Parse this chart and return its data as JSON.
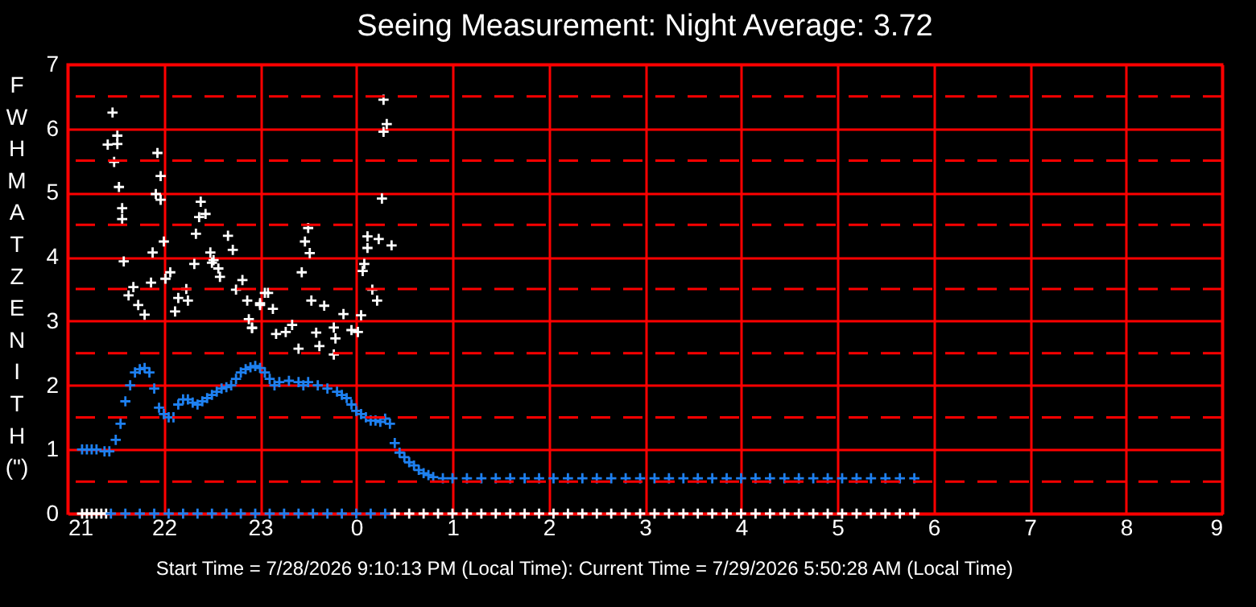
{
  "chart_data": {
    "type": "scatter",
    "title": "Seeing Measurement: Night Average: 3.72",
    "ylabel": "FWHM AT ZENITH (\")",
    "annotations": [
      "Start Time = 7/28/2026 9:10:13 PM (Local Time): Current Time = 7/29/2026 5:50:28 AM (Local Time)"
    ],
    "xlim": [
      "2026-07-28T21:00",
      "2026-07-29T09:00"
    ],
    "xticks": [
      {
        "value": "2026-07-28T21:00",
        "label": "21"
      },
      {
        "value": "2026-07-28T22:00",
        "label": "22"
      },
      {
        "value": "2026-07-28T23:00",
        "label": "23"
      },
      {
        "value": "2026-07-29T00:00",
        "label": "0"
      },
      {
        "value": "2026-07-29T01:00",
        "label": "1"
      },
      {
        "value": "2026-07-29T02:00",
        "label": "2"
      },
      {
        "value": "2026-07-29T03:00",
        "label": "3"
      },
      {
        "value": "2026-07-29T04:00",
        "label": "4"
      },
      {
        "value": "2026-07-29T05:00",
        "label": "5"
      },
      {
        "value": "2026-07-29T06:00",
        "label": "6"
      },
      {
        "value": "2026-07-29T07:00",
        "label": "7"
      },
      {
        "value": "2026-07-29T08:00",
        "label": "8"
      },
      {
        "value": "2026-07-29T09:00",
        "label": "9"
      }
    ],
    "ylim": [
      0,
      7
    ],
    "yticks": [
      0,
      {
        "value": 0.5,
        "label": null
      },
      1,
      {
        "value": 1.5,
        "label": null
      },
      2,
      {
        "value": 2.5,
        "label": null
      },
      3,
      {
        "value": 3.5,
        "label": null
      },
      4,
      {
        "value": 4.5,
        "label": null
      },
      5,
      {
        "value": 5.5,
        "label": null
      },
      6,
      {
        "value": 6.5,
        "label": null
      },
      7
    ],
    "grid": true,
    "marker": "cross",
    "series": [
      {
        "color": "#ffffff",
        "x": [
          "2026-07-28T21:28",
          "2026-07-28T21:31",
          "2026-07-28T21:25",
          "2026-07-28T21:31",
          "2026-07-28T21:29",
          "2026-07-28T21:56",
          "2026-07-28T21:58",
          "2026-07-28T21:32",
          "2026-07-28T21:55",
          "2026-07-28T21:58",
          "2026-07-28T21:34",
          "2026-07-28T21:34",
          "2026-07-28T22:23",
          "2026-07-28T22:22",
          "2026-07-28T22:26",
          "2026-07-28T22:20",
          "2026-07-28T22:40",
          "2026-07-28T22:43",
          "2026-07-28T22:00",
          "2026-07-28T21:53",
          "2026-07-28T21:35",
          "2026-07-28T22:29",
          "2026-07-28T22:30",
          "2026-07-28T22:19",
          "2026-07-28T22:04",
          "2026-07-28T22:01",
          "2026-07-28T22:14",
          "2026-07-28T22:09",
          "2026-07-28T21:41",
          "2026-07-28T21:38",
          "2026-07-28T21:44",
          "2026-07-28T21:48",
          "2026-07-28T21:52",
          "2026-07-28T22:35",
          "2026-07-28T22:34",
          "2026-07-28T22:49",
          "2026-07-28T22:45",
          "2026-07-28T22:52",
          "2026-07-28T22:55",
          "2026-07-28T23:05",
          "2026-07-28T23:00",
          "2026-07-28T22:07",
          "2026-07-28T22:15",
          "2026-07-29T00:16",
          "2026-07-28T23:30",
          "2026-07-28T23:28",
          "2026-07-28T23:31",
          "2026-07-29T00:07",
          "2026-07-29T00:14",
          "2026-07-29T00:22",
          "2026-07-29T00:07",
          "2026-07-29T00:05",
          "2026-07-29T00:04",
          "2026-07-28T23:26",
          "2026-07-29T00:10",
          "2026-07-29T00:13",
          "2026-07-29T00:03",
          "2026-07-28T23:32",
          "2026-07-28T23:40",
          "2026-07-28T23:52",
          "2026-07-28T23:46",
          "2026-07-28T23:35",
          "2026-07-28T23:57",
          "2026-07-29T00:01",
          "2026-07-28T23:47",
          "2026-07-28T23:37",
          "2026-07-28T23:46",
          "2026-07-28T23:24",
          "2026-07-28T23:16",
          "2026-07-28T23:20",
          "2026-07-28T23:10",
          "2026-07-28T22:53",
          "2026-07-28T22:55",
          "2026-07-28T23:00",
          "2026-07-28T23:08",
          "2026-07-28T23:03",
          "2026-07-28T22:31",
          "2026-07-29T00:17",
          "2026-07-29T00:19",
          "2026-07-29T00:17",
          "2026-07-28T21:09",
          "2026-07-28T21:12",
          "2026-07-28T21:15",
          "2026-07-28T21:18",
          "2026-07-28T21:21",
          "2026-07-28T21:24",
          "2026-07-29T00:24",
          "2026-07-29T00:33",
          "2026-07-29T00:42",
          "2026-07-29T00:51",
          "2026-07-29T01:00",
          "2026-07-29T01:09",
          "2026-07-29T01:18",
          "2026-07-29T01:27",
          "2026-07-29T01:36",
          "2026-07-29T01:45",
          "2026-07-29T01:54",
          "2026-07-29T02:03",
          "2026-07-29T02:12",
          "2026-07-29T02:21",
          "2026-07-29T02:30",
          "2026-07-29T02:39",
          "2026-07-29T02:48",
          "2026-07-29T02:57",
          "2026-07-29T03:06",
          "2026-07-29T03:15",
          "2026-07-29T03:24",
          "2026-07-29T03:33",
          "2026-07-29T03:42",
          "2026-07-29T03:51",
          "2026-07-29T04:00",
          "2026-07-29T04:09",
          "2026-07-29T04:18",
          "2026-07-29T04:27",
          "2026-07-29T04:36",
          "2026-07-29T04:45",
          "2026-07-29T04:54",
          "2026-07-29T05:03",
          "2026-07-29T05:12",
          "2026-07-29T05:21",
          "2026-07-29T05:30",
          "2026-07-29T05:39",
          "2026-07-29T05:48"
        ],
        "values": [
          6.25,
          5.89,
          5.75,
          5.76,
          5.48,
          5.62,
          5.26,
          5.09,
          4.98,
          4.89,
          4.76,
          4.59,
          4.86,
          4.62,
          4.67,
          4.36,
          4.33,
          4.11,
          4.24,
          4.07,
          3.93,
          4.07,
          3.91,
          3.89,
          3.76,
          3.66,
          3.5,
          3.36,
          3.53,
          3.4,
          3.25,
          3.1,
          3.6,
          3.69,
          3.82,
          3.64,
          3.49,
          3.32,
          2.9,
          3.44,
          3.28,
          3.15,
          3.32,
          4.91,
          4.45,
          4.24,
          4.06,
          4.32,
          4.28,
          4.18,
          4.14,
          3.89,
          3.78,
          3.76,
          3.49,
          3.32,
          3.09,
          3.32,
          3.24,
          3.11,
          2.9,
          2.82,
          2.86,
          2.83,
          2.73,
          2.61,
          2.48,
          2.57,
          2.83,
          2.94,
          2.8,
          3.03,
          2.89,
          3.25,
          3.19,
          3.44,
          3.95,
          6.45,
          6.07,
          5.95,
          0,
          0,
          0,
          0,
          0,
          0,
          0,
          0,
          0,
          0,
          0,
          0,
          0,
          0,
          0,
          0,
          0,
          0,
          0,
          0,
          0,
          0,
          0,
          0,
          0,
          0,
          0,
          0,
          0,
          0,
          0,
          0,
          0,
          0,
          0,
          0,
          0,
          0,
          0,
          0,
          0,
          0,
          0
        ]
      },
      {
        "color": "#1e80f0",
        "x": [
          "2026-07-28T21:09",
          "2026-07-28T21:12",
          "2026-07-28T21:15",
          "2026-07-28T21:18",
          "2026-07-28T21:23",
          "2026-07-28T21:26",
          "2026-07-28T21:30",
          "2026-07-28T21:33",
          "2026-07-28T21:36",
          "2026-07-28T21:39",
          "2026-07-28T21:42",
          "2026-07-28T21:45",
          "2026-07-28T21:48",
          "2026-07-28T21:51",
          "2026-07-28T21:54",
          "2026-07-28T21:57",
          "2026-07-28T22:00",
          "2026-07-28T22:03",
          "2026-07-28T22:06",
          "2026-07-28T22:09",
          "2026-07-28T22:12",
          "2026-07-28T22:15",
          "2026-07-28T22:18",
          "2026-07-28T22:21",
          "2026-07-28T22:24",
          "2026-07-28T22:27",
          "2026-07-28T22:30",
          "2026-07-28T22:33",
          "2026-07-28T22:36",
          "2026-07-28T22:39",
          "2026-07-28T22:42",
          "2026-07-28T22:45",
          "2026-07-28T22:48",
          "2026-07-28T22:51",
          "2026-07-28T22:54",
          "2026-07-28T22:57",
          "2026-07-28T23:00",
          "2026-07-28T23:03",
          "2026-07-28T23:06",
          "2026-07-28T23:09",
          "2026-07-28T23:12",
          "2026-07-28T23:18",
          "2026-07-28T23:24",
          "2026-07-28T23:27",
          "2026-07-28T23:30",
          "2026-07-28T23:36",
          "2026-07-28T23:42",
          "2026-07-28T23:48",
          "2026-07-28T23:51",
          "2026-07-28T23:54",
          "2026-07-28T23:57",
          "2026-07-29T00:00",
          "2026-07-29T00:03",
          "2026-07-29T00:06",
          "2026-07-29T00:09",
          "2026-07-29T00:12",
          "2026-07-29T00:15",
          "2026-07-29T00:18",
          "2026-07-29T00:21",
          "2026-07-29T00:24",
          "2026-07-29T00:27",
          "2026-07-29T00:30",
          "2026-07-29T00:33",
          "2026-07-29T00:36",
          "2026-07-29T00:39",
          "2026-07-29T00:42",
          "2026-07-29T00:45",
          "2026-07-29T00:48",
          "2026-07-29T00:54",
          "2026-07-29T01:00",
          "2026-07-29T01:09",
          "2026-07-29T01:18",
          "2026-07-29T01:27",
          "2026-07-29T01:36",
          "2026-07-29T01:45",
          "2026-07-29T01:54",
          "2026-07-29T02:03",
          "2026-07-29T02:12",
          "2026-07-29T02:21",
          "2026-07-29T02:30",
          "2026-07-29T02:39",
          "2026-07-29T02:48",
          "2026-07-29T02:57",
          "2026-07-29T03:06",
          "2026-07-29T03:15",
          "2026-07-29T03:24",
          "2026-07-29T03:33",
          "2026-07-29T03:42",
          "2026-07-29T03:51",
          "2026-07-29T04:00",
          "2026-07-29T04:09",
          "2026-07-29T04:18",
          "2026-07-29T04:27",
          "2026-07-29T04:36",
          "2026-07-29T04:45",
          "2026-07-29T04:54",
          "2026-07-29T05:03",
          "2026-07-29T05:12",
          "2026-07-29T05:21",
          "2026-07-29T05:30",
          "2026-07-29T05:39",
          "2026-07-29T05:48",
          "2026-07-28T21:27",
          "2026-07-28T21:36",
          "2026-07-28T21:45",
          "2026-07-28T21:54",
          "2026-07-28T22:03",
          "2026-07-28T22:12",
          "2026-07-28T22:21",
          "2026-07-28T22:30",
          "2026-07-28T22:39",
          "2026-07-28T22:48",
          "2026-07-28T22:57",
          "2026-07-28T23:06",
          "2026-07-28T23:15",
          "2026-07-28T23:24",
          "2026-07-28T23:33",
          "2026-07-28T23:42",
          "2026-07-28T23:51",
          "2026-07-29T00:00",
          "2026-07-29T00:09",
          "2026-07-29T00:18"
        ],
        "values": [
          1.0,
          1.0,
          1.0,
          1.0,
          0.97,
          0.97,
          1.15,
          1.4,
          1.75,
          2.0,
          2.2,
          2.25,
          2.27,
          2.2,
          1.95,
          1.65,
          1.55,
          1.5,
          1.5,
          1.7,
          1.78,
          1.78,
          1.73,
          1.7,
          1.75,
          1.8,
          1.85,
          1.9,
          1.95,
          1.97,
          2.0,
          2.1,
          2.2,
          2.25,
          2.28,
          2.3,
          2.27,
          2.2,
          2.1,
          2.0,
          2.05,
          2.07,
          2.05,
          2.0,
          2.05,
          2.0,
          1.95,
          1.9,
          1.85,
          1.8,
          1.7,
          1.6,
          1.55,
          1.5,
          1.45,
          1.45,
          1.43,
          1.48,
          1.4,
          1.1,
          0.95,
          0.88,
          0.8,
          0.75,
          0.68,
          0.63,
          0.6,
          0.57,
          0.55,
          0.55,
          0.55,
          0.55,
          0.55,
          0.55,
          0.55,
          0.55,
          0.55,
          0.55,
          0.55,
          0.55,
          0.55,
          0.55,
          0.55,
          0.55,
          0.55,
          0.55,
          0.55,
          0.55,
          0.55,
          0.55,
          0.55,
          0.55,
          0.55,
          0.55,
          0.55,
          0.55,
          0.55,
          0.55,
          0.55,
          0.55,
          0.55,
          0.55,
          0,
          0,
          0,
          0,
          0,
          0,
          0,
          0,
          0,
          0,
          0,
          0,
          0,
          0,
          0,
          0,
          0,
          0,
          0,
          0
        ]
      }
    ]
  }
}
